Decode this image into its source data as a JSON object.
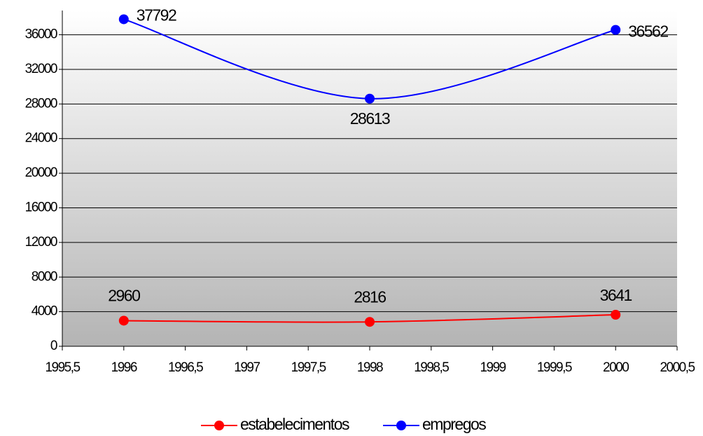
{
  "chart_data": {
    "type": "line",
    "x": [
      1996,
      1998,
      2000
    ],
    "series": [
      {
        "name": "estabelecimentos",
        "color": "#ff0000",
        "values": [
          2960,
          2816,
          3641
        ]
      },
      {
        "name": "empregos",
        "color": "#0000ff",
        "values": [
          37792,
          28613,
          36562
        ]
      }
    ],
    "xlim": [
      1995.5,
      2000.5
    ],
    "xticks": [
      {
        "value": 1995.5,
        "label": "1995,5"
      },
      1996,
      {
        "value": 1996.5,
        "label": "1996,5"
      },
      1997,
      {
        "value": 1997.5,
        "label": "1997,5"
      },
      1998,
      {
        "value": 1998.5,
        "label": "1998,5"
      },
      1999,
      {
        "value": 1999.5,
        "label": "1999,5"
      },
      2000,
      {
        "value": 2000.5,
        "label": "2000,5"
      }
    ],
    "ylim": [
      0,
      38800
    ],
    "yticks": [
      0,
      4000,
      8000,
      12000,
      16000,
      20000,
      24000,
      28000,
      32000,
      36000
    ],
    "grid": true,
    "legend": "bottom"
  }
}
